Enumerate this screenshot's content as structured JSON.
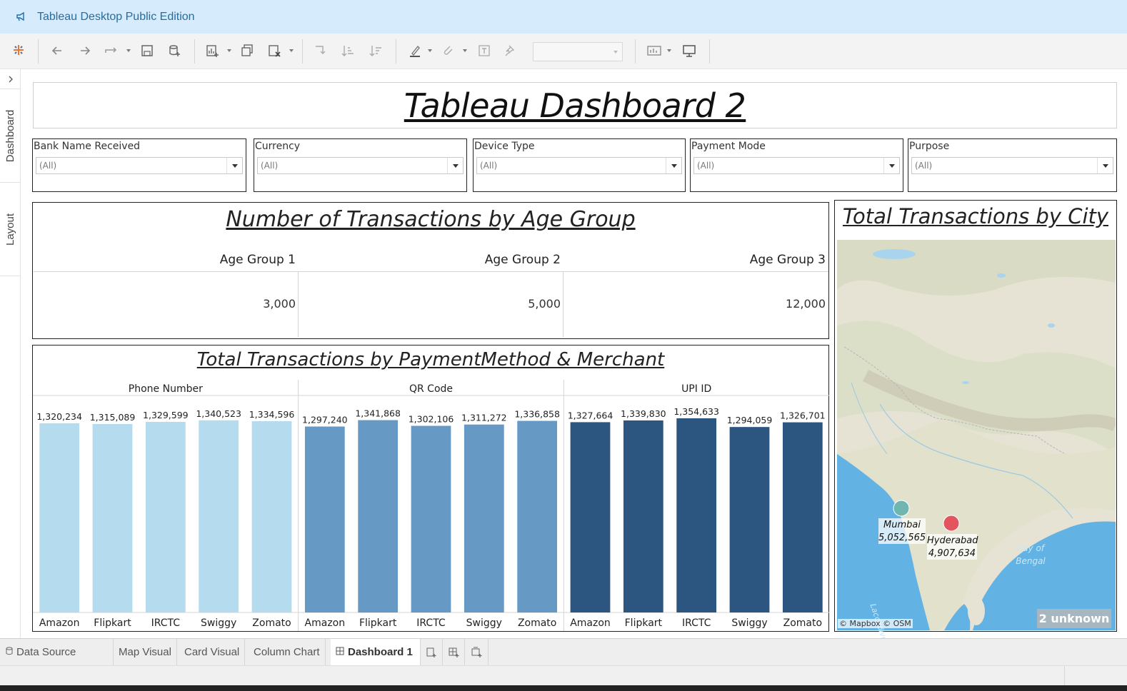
{
  "window": {
    "title": "Tableau Desktop Public Edition"
  },
  "sidebar": {
    "tabs": [
      "Dashboard",
      "Layout"
    ]
  },
  "dashboard": {
    "title": "Tableau Dashboard 2"
  },
  "filters": [
    {
      "label": "Bank Name Received",
      "value": "(All)"
    },
    {
      "label": "Currency",
      "value": "(All)"
    },
    {
      "label": "Device Type",
      "value": "(All)"
    },
    {
      "label": "Payment Mode",
      "value": "(All)"
    },
    {
      "label": "Purpose",
      "value": "(All)"
    }
  ],
  "age_panel": {
    "title": "Number of Transactions by Age Group",
    "columns": [
      "Age Group 1",
      "Age Group 2",
      "Age Group 3"
    ],
    "values": [
      "3,000",
      "5,000",
      "12,000"
    ]
  },
  "chart_data": {
    "type": "bar",
    "title": "Total Transactions by PaymentMethod & Merchant",
    "xlabel": "",
    "ylabel": "",
    "categories": [
      "Amazon",
      "Flipkart",
      "IRCTC",
      "Swiggy",
      "Zomato"
    ],
    "series": [
      {
        "name": "Phone Number",
        "color": "#b5dbef",
        "values": [
          1320234,
          1315089,
          1329599,
          1340523,
          1334596
        ],
        "labels": [
          "1,320,234",
          "1,315,089",
          "1,329,599",
          "1,340,523",
          "1,334,596"
        ]
      },
      {
        "name": "QR Code",
        "color": "#6699c4",
        "values": [
          1297240,
          1341868,
          1302106,
          1311272,
          1336858
        ],
        "labels": [
          "1,297,240",
          "1,341,868",
          "1,302,106",
          "1,311,272",
          "1,336,858"
        ]
      },
      {
        "name": "UPI ID",
        "color": "#2c5680",
        "values": [
          1327664,
          1339830,
          1354633,
          1294059,
          1326701
        ],
        "labels": [
          "1,327,664",
          "1,339,830",
          "1,354,633",
          "1,294,059",
          "1,326,701"
        ]
      }
    ],
    "ylim": [
      0,
      1354633
    ],
    "grid": false,
    "legend": "none"
  },
  "map_panel": {
    "title": "Total Transactions by City",
    "cities": [
      {
        "name": "Mumbai",
        "value": "5,052,565",
        "color": "#6fb6b0"
      },
      {
        "name": "Hyderabad",
        "value": "4,907,634",
        "color": "#e2555f"
      }
    ],
    "sea_label_1": "Bay of",
    "sea_label_2": "Bengal",
    "sea_label_3": "Laccadive Se",
    "credit": "© Mapbox © OSM",
    "unknown_badge": "2 unknown"
  },
  "tabs": {
    "data_source": "Data Source",
    "items": [
      "Map Visual",
      "Card Visual",
      "Column Chart",
      "Dashboard 1"
    ]
  }
}
